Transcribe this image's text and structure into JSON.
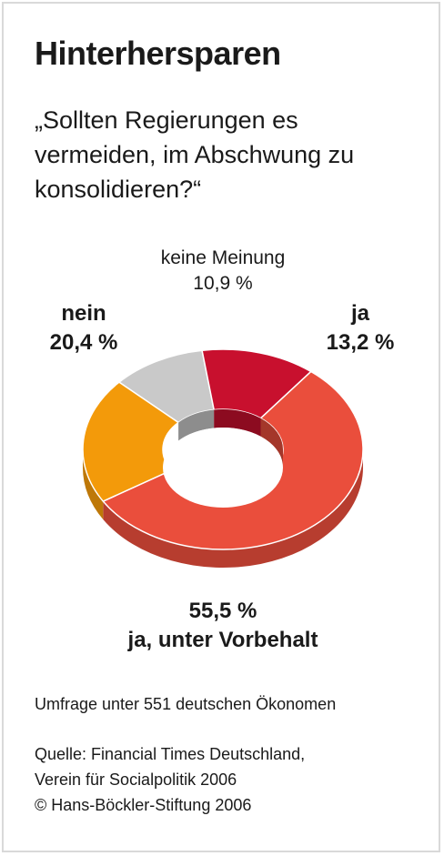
{
  "title": "Hinterhersparen",
  "question": "„Sollten Regierungen es vermeiden, im Abschwung zu konsolidieren?“",
  "chart_data": {
    "type": "pie",
    "variant": "donut",
    "categories": [
      "keine Meinung",
      "ja",
      "ja, unter Vorbehalt",
      "nein"
    ],
    "values": [
      10.9,
      13.2,
      55.5,
      20.4
    ],
    "value_labels": [
      "10,9 %",
      "13,2 %",
      "55,5 %",
      "20,4 %"
    ],
    "colors": {
      "keine Meinung": "#c9c9c9",
      "ja": "#c8102e",
      "ja, unter Vorbehalt": "#ea4e3c",
      "nein": "#f39a0a"
    }
  },
  "footer": {
    "survey": "Umfrage unter 551 deutschen Ökonomen",
    "source_line1": "Quelle: Financial Times Deutschland,",
    "source_line2": "Verein für Socialpolitik 2006",
    "copyright": "© Hans-Böckler-Stiftung 2006"
  }
}
